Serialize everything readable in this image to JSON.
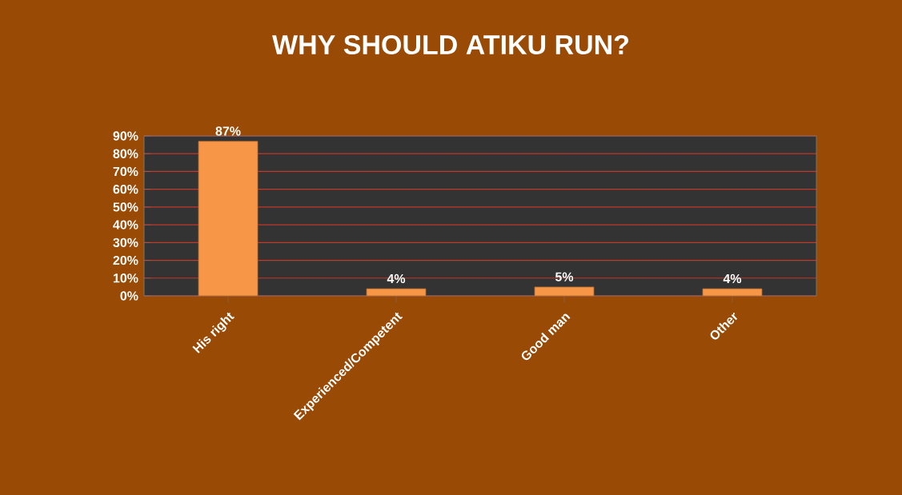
{
  "chart_data": {
    "type": "bar",
    "title": "WHY SHOULD ATIKU RUN?",
    "categories": [
      "His right",
      "Experienced/Competent",
      "Good man",
      "Other"
    ],
    "values": [
      87,
      4,
      5,
      4
    ],
    "color": "#f79646",
    "value_labels": [
      "87%",
      "4%",
      "5%",
      "4%"
    ],
    "ylim": [
      0,
      90
    ],
    "yticks": [
      {
        "value": 0,
        "label": "0%"
      },
      {
        "value": 10,
        "label": "10%"
      },
      {
        "value": 20,
        "label": "20%"
      },
      {
        "value": 30,
        "label": "30%"
      },
      {
        "value": 40,
        "label": "40%"
      },
      {
        "value": 50,
        "label": "50%"
      },
      {
        "value": 60,
        "label": "60%"
      },
      {
        "value": 70,
        "label": "70%"
      },
      {
        "value": 80,
        "label": "80%"
      },
      {
        "value": 90,
        "label": "90%"
      }
    ],
    "grid": "y"
  }
}
